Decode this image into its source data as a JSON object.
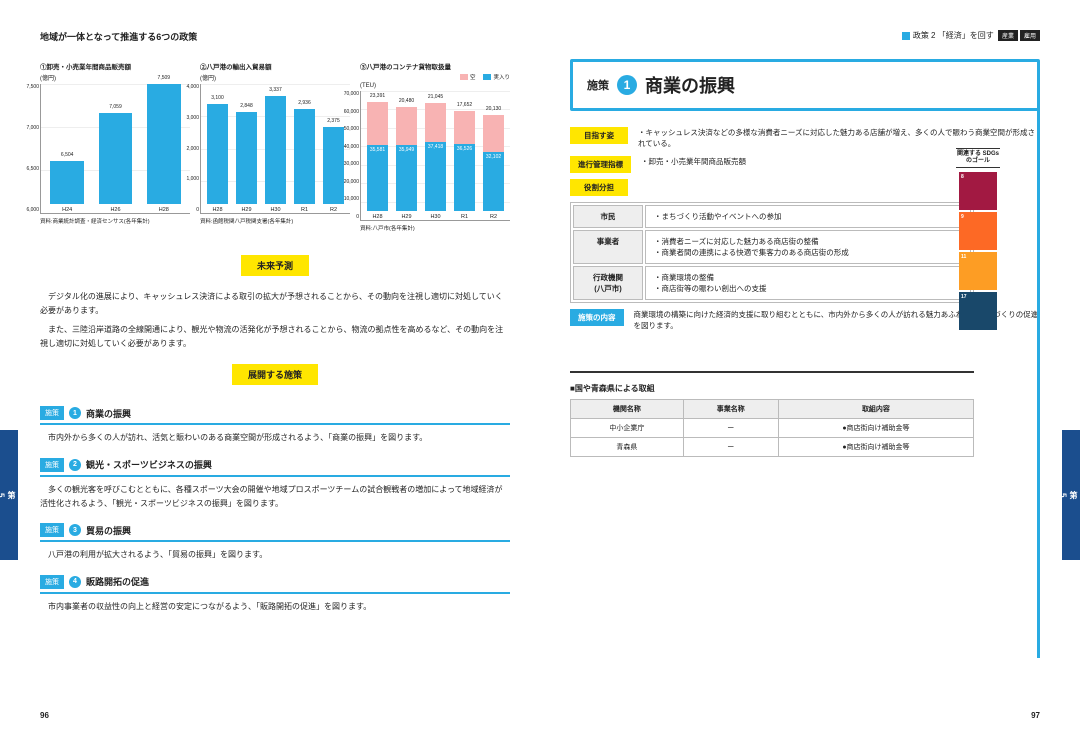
{
  "header": {
    "left": "地域が一体となって推進する6つの政策",
    "right_prefix": "政策 2 「経済」を回す",
    "tags": [
      "産業",
      "雇用"
    ]
  },
  "chart1": {
    "title": "①卸売・小売業年間商品販売額",
    "unit": "(億円)",
    "ymin": 6000,
    "ymax": 7500,
    "ystep": 500,
    "cats": [
      "H24",
      "H26",
      "H28"
    ],
    "vals": [
      6504,
      7059,
      7509
    ],
    "color": "#29abe2",
    "note": "資料:商業統計調査・経済センサス(各年集計)"
  },
  "chart2": {
    "title": "②八戸港の輸出入貿易額",
    "unit": "(億円)",
    "ymin": 0,
    "ymax": 4000,
    "ystep": 1000,
    "cats": [
      "H28",
      "H29",
      "H30",
      "R1",
      "R2"
    ],
    "vals": [
      3100,
      2848,
      3337,
      2936,
      2375
    ],
    "color": "#29abe2",
    "note": "資料:函館税関八戸税関支署(各年集計)"
  },
  "chart3": {
    "title": "③八戸港のコンテナ貨物取扱量",
    "unit": "(TEU)",
    "ymin": 0,
    "ymax": 70000,
    "ystep": 10000,
    "cats": [
      "H28",
      "H29",
      "H30",
      "R1",
      "R2"
    ],
    "pink": [
      23391,
      20480,
      21045,
      17652,
      20130
    ],
    "blue": [
      35581,
      35949,
      37418,
      36526,
      32102
    ],
    "note": "資料:八戸市(各年集計)",
    "legend": [
      "空",
      "実入り"
    ]
  },
  "labels": {
    "future": "未来予測",
    "deploy": "展開する施策"
  },
  "body": {
    "p1": "デジタル化の進展により、キャッシュレス決済による取引の拡大が予想されることから、その動向を注視し適切に対処していく必要があります。",
    "p2": "また、三陸沿岸道路の全線開通により、観光や物流の活発化が予想されることから、物流の拠点性を高めるなど、その動向を注視し適切に対処していく必要があります。"
  },
  "measures": [
    {
      "n": "1",
      "t": "商業の振興",
      "d": "市内外から多くの人が訪れ、活気と賑わいのある商業空間が形成されるよう、「商業の振興」を図ります。"
    },
    {
      "n": "2",
      "t": "観光・スポーツビジネスの振興",
      "d": "多くの観光客を呼びこむとともに、各種スポーツ大会の開催や地域プロスポーツチームの試合観戦者の増加によって地域経済が活性化されるよう、「観光・スポーツビジネスの振興」を図ります。"
    },
    {
      "n": "3",
      "t": "貿易の振興",
      "d": "八戸港の利用が拡大されるよう、「貿易の振興」を図ります。"
    },
    {
      "n": "4",
      "t": "販路開拓の促進",
      "d": "市内事業者の収益性の向上と経営の安定につながるよう、「販路開拓の促進」を図ります。"
    }
  ],
  "right": {
    "policy_pre": "施策",
    "policy_num": "1",
    "policy_title": "商業の振興",
    "goal_tag": "目指す姿",
    "goal_text": "・キャッシュレス決済などの多様な消費者ニーズに対応した魅力ある店舗が増え、多くの人で賑わう商業空間が形成されている。",
    "ind_tag": "進行管理指標",
    "ind_text": "・卸売・小売業年間商品販売額",
    "role_tag": "役割分担",
    "roles": [
      [
        "市民",
        "・まちづくり活動やイベントへの参加"
      ],
      [
        "事業者",
        "・消費者ニーズに対応した魅力ある商店街の整備\n・商業者間の連携による快適で集客力のある商店街の形成"
      ],
      [
        "行政機関\n(八戸市)",
        "・商業環境の整備\n・商店街等の賑わい創出への支援"
      ]
    ],
    "content_tag": "施策の内容",
    "content_text": "商業環境の構築に向けた経済的支援に取り組むとともに、市内外から多くの人が訪れる魅力あふれる商店街づくりの促進を図ります。",
    "sdg_title": "関連する\nSDGs\nのゴール",
    "sdgs": [
      {
        "n": "8",
        "c": "#a21942"
      },
      {
        "n": "9",
        "c": "#fd6925"
      },
      {
        "n": "11",
        "c": "#fd9d24"
      },
      {
        "n": "17",
        "c": "#19486a"
      }
    ],
    "nat_title": "■国や青森県による取組",
    "nat_head": [
      "機関名称",
      "事業名称",
      "取組内容"
    ],
    "nat_rows": [
      [
        "中小企業庁",
        "ー",
        "●商店街向け補助金等"
      ],
      [
        "青森県",
        "ー",
        "●商店街向け補助金等"
      ]
    ]
  },
  "side": {
    "ch_label": "第",
    "ch_num": "5",
    "ch_suffix": "章",
    "text": "地域が一体となって推進する6つの政策"
  },
  "pages": {
    "l": "96",
    "r": "97"
  }
}
